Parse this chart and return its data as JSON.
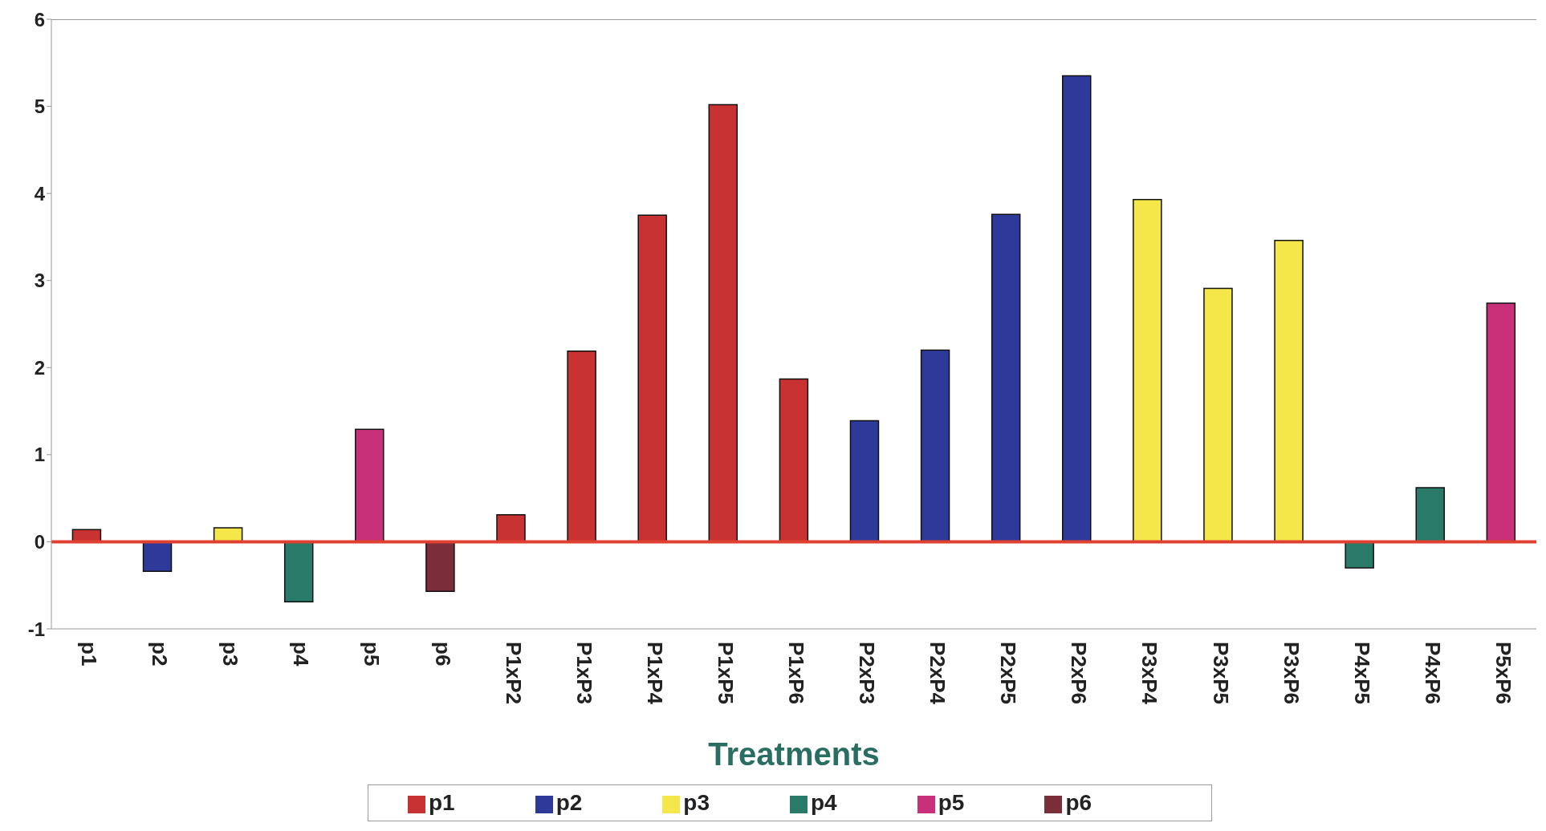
{
  "chart_data": {
    "type": "bar",
    "xlabel": "Treatments",
    "categories": [
      "p1",
      "p2",
      "p3",
      "p4",
      "p5",
      "p6",
      "P1xP2",
      "P1xP3",
      "P1xP4",
      "P1xP5",
      "P1xP6",
      "P2xP3",
      "P2xP4",
      "P2xP5",
      "P2xP6",
      "P3xP4",
      "P3xP5",
      "P3xP6",
      "P4xP5",
      "P4xP6",
      "P5xP6"
    ],
    "series": [
      {
        "name": "p1",
        "color": "#c83232",
        "values": [
          0.14,
          null,
          null,
          null,
          null,
          null,
          0.31,
          2.19,
          3.75,
          5.02,
          1.87,
          null,
          null,
          null,
          null,
          null,
          null,
          null,
          null,
          null,
          null
        ]
      },
      {
        "name": "p2",
        "color": "#2e3a9a",
        "values": [
          null,
          -0.34,
          null,
          null,
          null,
          null,
          null,
          null,
          null,
          null,
          null,
          1.39,
          2.2,
          3.76,
          5.35,
          null,
          null,
          null,
          null,
          null,
          null
        ]
      },
      {
        "name": "p3",
        "color": "#f5e64a",
        "values": [
          null,
          null,
          0.16,
          null,
          null,
          null,
          null,
          null,
          null,
          null,
          null,
          null,
          null,
          null,
          null,
          3.93,
          2.91,
          3.46,
          null,
          null,
          null
        ]
      },
      {
        "name": "p4",
        "color": "#2a7a6a",
        "values": [
          null,
          null,
          null,
          -0.69,
          null,
          null,
          null,
          null,
          null,
          null,
          null,
          null,
          null,
          null,
          null,
          null,
          null,
          null,
          -0.3,
          0.62,
          null
        ]
      },
      {
        "name": "p5",
        "color": "#c8307a",
        "values": [
          null,
          null,
          null,
          null,
          1.29,
          null,
          null,
          null,
          null,
          null,
          null,
          null,
          null,
          null,
          null,
          null,
          null,
          null,
          null,
          null,
          2.74
        ]
      },
      {
        "name": "p6",
        "color": "#7a2e3a",
        "values": [
          null,
          null,
          null,
          null,
          null,
          -0.57,
          null,
          null,
          null,
          null,
          null,
          null,
          null,
          null,
          null,
          null,
          null,
          null,
          null,
          null,
          null
        ]
      }
    ],
    "ylim": [
      -1,
      6
    ],
    "yticks": [
      -1,
      0,
      1,
      2,
      3,
      4,
      5,
      6
    ],
    "ref_lines": [
      {
        "axis": "y",
        "value": 0,
        "color": "#e04030"
      }
    ],
    "legend": "bottom"
  }
}
